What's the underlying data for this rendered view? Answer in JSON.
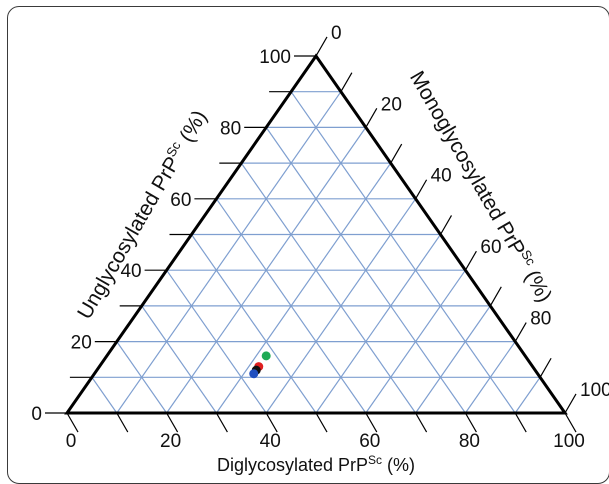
{
  "chart_data": {
    "type": "scatter",
    "subtype": "ternary",
    "axes": {
      "left": {
        "label": "Unglycosylated PrP",
        "superscript": "Sc",
        "suffix": " (%)",
        "ticks": [
          "0",
          "20",
          "40",
          "60",
          "80",
          "100"
        ]
      },
      "right": {
        "label": "Monoglycosylated PrP",
        "superscript": "Sc",
        "suffix": " (%)",
        "ticks": [
          "0",
          "20",
          "40",
          "60",
          "80",
          "100"
        ]
      },
      "bottom": {
        "label": "Diglycosylated PrP",
        "superscript": "Sc",
        "suffix": " (%)",
        "ticks": [
          "100",
          "80",
          "60",
          "40",
          "20",
          "0"
        ]
      }
    },
    "grid": true,
    "grid_color": "#7f9fd0",
    "points": [
      {
        "diglycosylated": 52,
        "monoglycosylated": 32,
        "unglycosylated": 16,
        "color": "#1faa55"
      },
      {
        "diglycosylated": 55,
        "monoglycosylated": 32,
        "unglycosylated": 13,
        "color": "#e02020"
      },
      {
        "diglycosylated": 56,
        "monoglycosylated": 32,
        "unglycosylated": 12,
        "color": "#111111"
      },
      {
        "diglycosylated": 57,
        "monoglycosylated": 32,
        "unglycosylated": 11,
        "color": "#1f4fbf"
      }
    ]
  }
}
